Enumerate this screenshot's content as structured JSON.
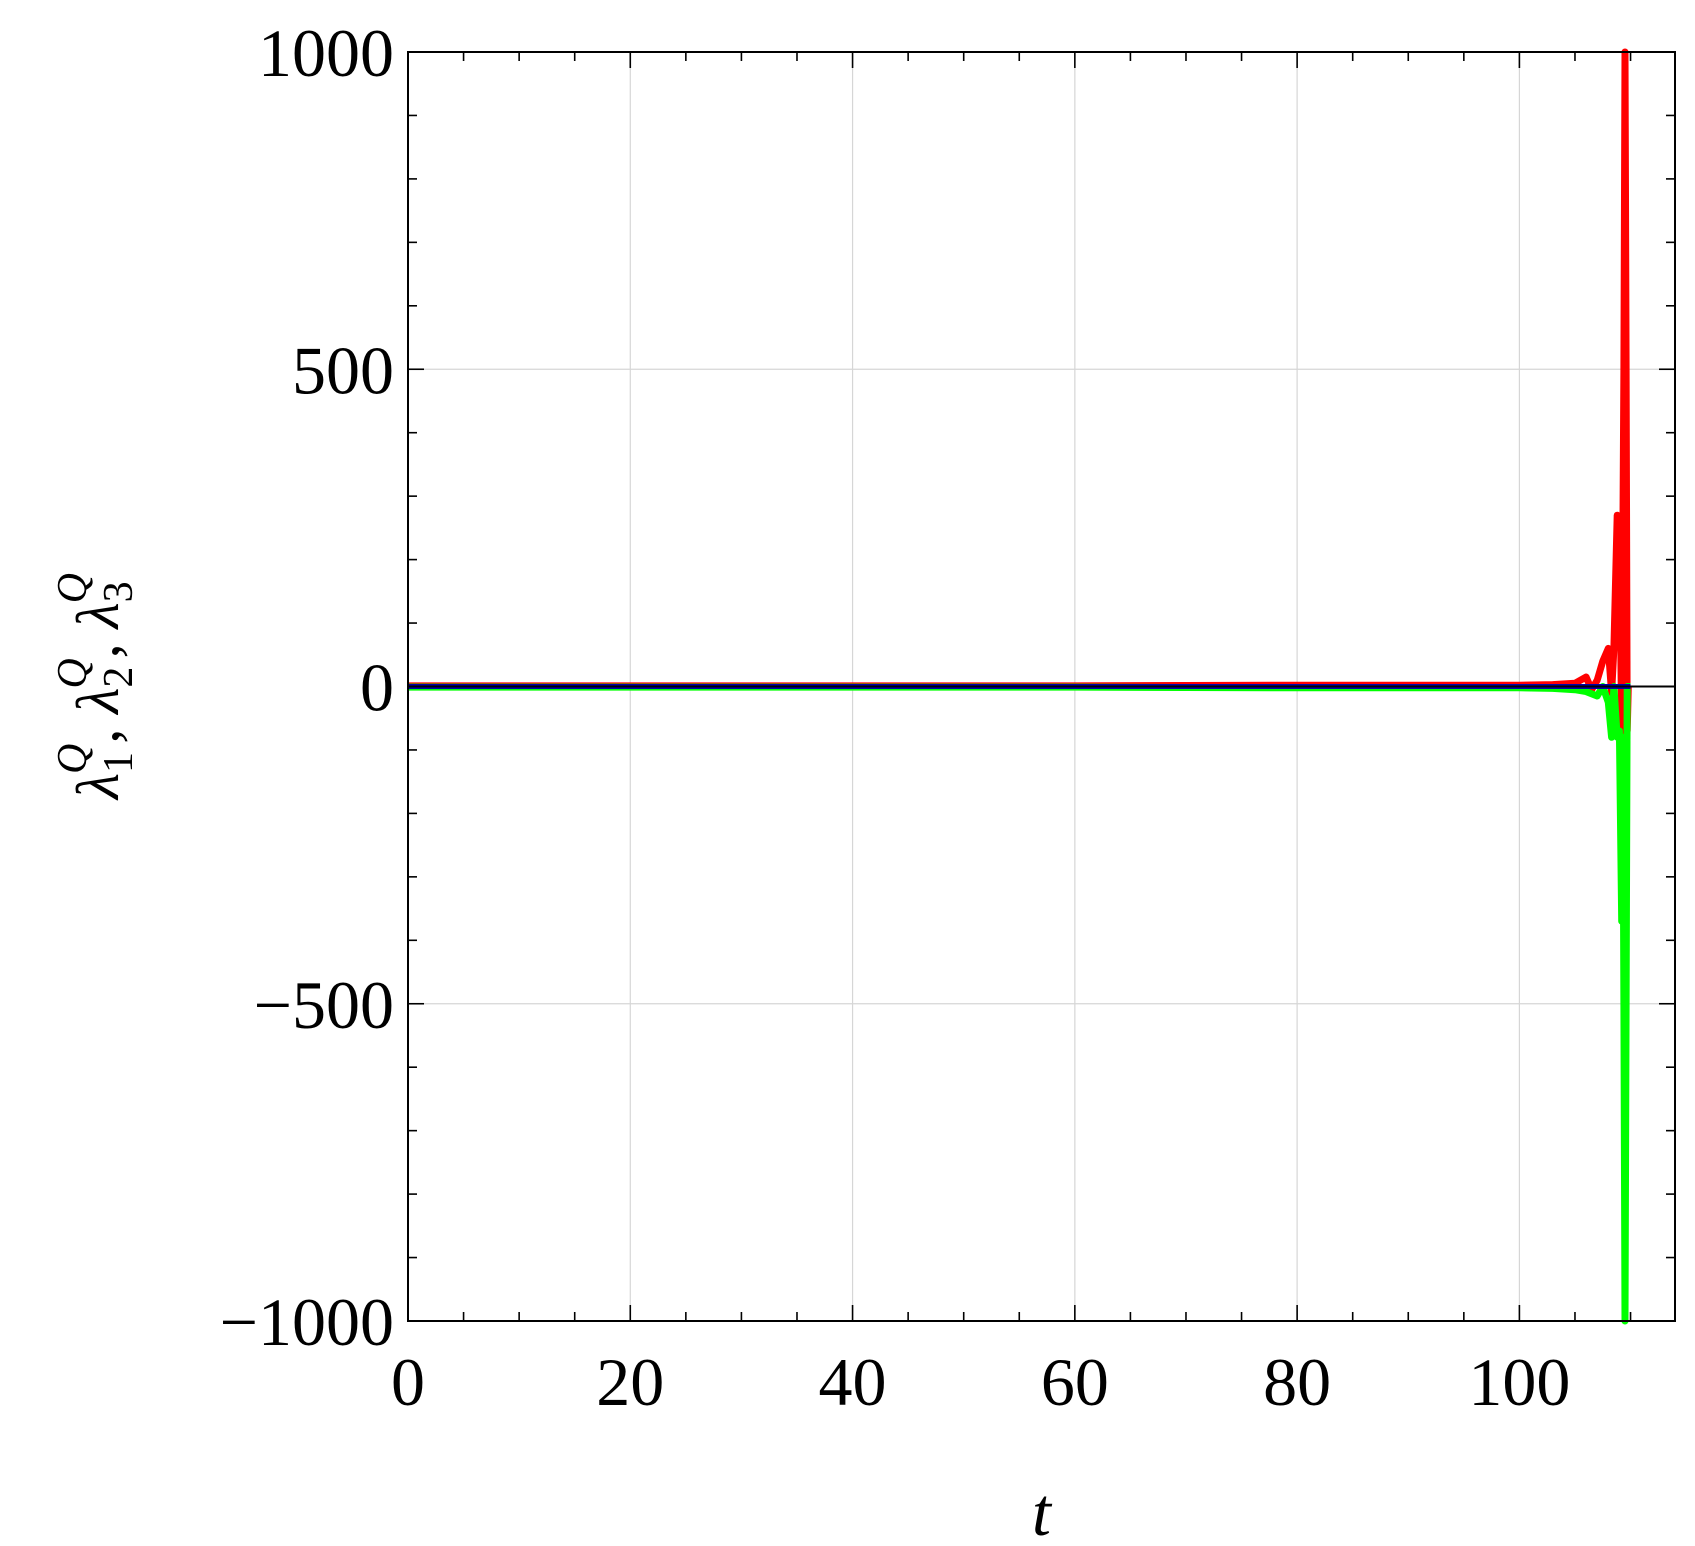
{
  "chart_data": {
    "type": "line",
    "title": "",
    "xlabel": "t",
    "ylabel": {
      "parts": [
        {
          "base": "λ",
          "sub": "1",
          "sup": "Q"
        },
        {
          "base": "λ",
          "sub": "2",
          "sup": "Q"
        },
        {
          "base": "λ",
          "sub": "3",
          "sup": "Q"
        }
      ],
      "separator": ", "
    },
    "xlim": [
      0,
      114
    ],
    "ylim": [
      -1000,
      1000
    ],
    "xticks": [
      0,
      20,
      40,
      60,
      80,
      100
    ],
    "xtick_labels": [
      "0",
      "20",
      "40",
      "60",
      "80",
      "100"
    ],
    "yticks": [
      -1000,
      -500,
      0,
      500,
      1000
    ],
    "ytick_labels": [
      "−1000",
      "−500",
      "0",
      "500",
      "1000"
    ],
    "grid": true,
    "legend": "none",
    "series": [
      {
        "color": "#ff0000",
        "x": [
          0,
          20,
          40,
          60,
          80,
          100,
          103,
          105,
          106,
          106.5,
          107,
          107.5,
          108,
          108.3,
          108.5,
          108.8,
          109,
          109.2,
          109.4,
          109.5,
          109.6,
          109.7,
          109.8,
          110
        ],
        "y": [
          1,
          1,
          1,
          1,
          2,
          2,
          3,
          5,
          15,
          -5,
          10,
          40,
          60,
          -10,
          60,
          270,
          260,
          -70,
          500,
          1000,
          500,
          -70,
          0,
          0
        ]
      },
      {
        "color": "#00ff00",
        "x": [
          0,
          20,
          40,
          60,
          80,
          100,
          103,
          105,
          106,
          107,
          107.5,
          108,
          108.3,
          108.5,
          108.8,
          109,
          109.2,
          109.3,
          109.4,
          109.5,
          109.6,
          109.7,
          109.8,
          110
        ],
        "y": [
          -1,
          -1,
          -1,
          -1,
          -2,
          -2,
          -3,
          -5,
          -8,
          -15,
          0,
          -25,
          -80,
          0,
          -80,
          -70,
          -370,
          -80,
          -500,
          -1000,
          -500,
          0,
          0,
          0
        ]
      },
      {
        "color": "#0000aa",
        "x": [
          0,
          20,
          40,
          60,
          80,
          100,
          105,
          108,
          110
        ],
        "y": [
          0,
          0,
          0,
          0,
          0,
          0,
          0,
          0,
          0
        ]
      }
    ]
  }
}
